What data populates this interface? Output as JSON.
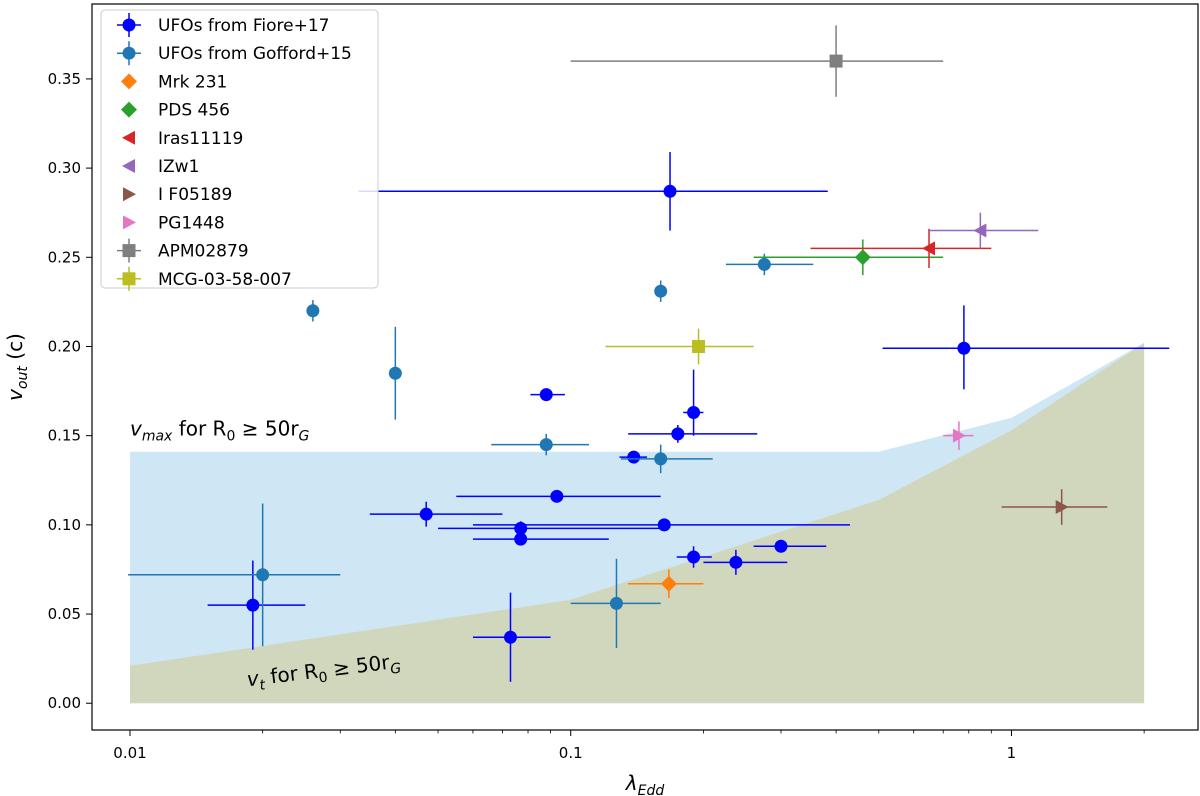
{
  "chart_data": {
    "type": "scatter",
    "x_scale": "log",
    "xlim": [
      0.0082,
      2.65
    ],
    "ylim": [
      -0.015,
      0.392
    ],
    "xlabel": {
      "main": "λ",
      "sub": "Edd"
    },
    "ylabel": {
      "main": "v",
      "sub": "out",
      "unit": " (c)"
    },
    "x_ticks": [
      {
        "value": 0.01,
        "label": "0.01"
      },
      {
        "value": 0.1,
        "label": "0.1"
      },
      {
        "value": 1,
        "label": "1"
      }
    ],
    "x_minor_ticks": [
      0.02,
      0.03,
      0.04,
      0.05,
      0.06,
      0.07,
      0.08,
      0.09,
      0.2,
      0.3,
      0.4,
      0.5,
      0.6,
      0.7,
      0.8,
      0.9,
      2
    ],
    "y_ticks": [
      {
        "value": 0.0,
        "label": "0.00"
      },
      {
        "value": 0.05,
        "label": "0.05"
      },
      {
        "value": 0.1,
        "label": "0.10"
      },
      {
        "value": 0.15,
        "label": "0.15"
      },
      {
        "value": 0.2,
        "label": "0.20"
      },
      {
        "value": 0.25,
        "label": "0.25"
      },
      {
        "value": 0.3,
        "label": "0.30"
      },
      {
        "value": 0.35,
        "label": "0.35"
      }
    ],
    "regions": [
      {
        "name": "vmax-region",
        "color": "#cfe7f5",
        "upper": [
          [
            0.01,
            0.141
          ],
          [
            0.5,
            0.141
          ],
          [
            1.0,
            0.16
          ],
          [
            2.0,
            0.202
          ]
        ],
        "lower": [
          [
            0.01,
            0.0
          ],
          [
            2.0,
            0.0
          ]
        ]
      },
      {
        "name": "vt-region",
        "color": "#d0d7bc",
        "upper": [
          [
            0.01,
            0.021
          ],
          [
            0.1,
            0.058
          ],
          [
            0.5,
            0.114
          ],
          [
            1.0,
            0.153
          ],
          [
            2.0,
            0.202
          ]
        ],
        "lower": [
          [
            0.01,
            0.0
          ],
          [
            2.0,
            0.0
          ]
        ]
      }
    ],
    "annotations": [
      {
        "name": "vmax-label",
        "main": "v",
        "sub": "max",
        "text": " for R",
        "sub2": "0",
        "text2": " ≥ 50r",
        "sub3": "G",
        "x": 0.01,
        "y": 0.15,
        "rotation": 0
      },
      {
        "name": "vt-label",
        "main": "v",
        "sub": "t",
        "text": " for R",
        "sub2": "0",
        "text2": " ≥ 50r",
        "sub3": "G",
        "x": 0.0185,
        "y": 0.0095,
        "rotation": -7
      }
    ],
    "series": [
      {
        "name": "UFOs from Fiore+17",
        "color": "#0000ff",
        "marker": "circle",
        "points": [
          {
            "x": 0.168,
            "y": 0.287,
            "xlo": 0.135,
            "xhi": 0.215,
            "ylo": 0.022,
            "yhi": 0.022
          },
          {
            "x": 0.78,
            "y": 0.199,
            "xlo": 0.27,
            "xhi": 1.5,
            "ylo": 0.023,
            "yhi": 0.024
          },
          {
            "x": 0.088,
            "y": 0.173,
            "xlo": 0.007,
            "xhi": 0.009,
            "ylo": 0.003,
            "yhi": 0.003
          },
          {
            "x": 0.19,
            "y": 0.163,
            "xlo": 0.01,
            "xhi": 0.01,
            "ylo": 0.013,
            "yhi": 0.024
          },
          {
            "x": 0.175,
            "y": 0.151,
            "xlo": 0.04,
            "xhi": 0.09,
            "ylo": 0.005,
            "yhi": 0.005
          },
          {
            "x": 0.139,
            "y": 0.138,
            "xlo": 0.01,
            "xhi": 0.01,
            "ylo": 0.003,
            "yhi": 0.003
          },
          {
            "x": 0.093,
            "y": 0.116,
            "xlo": 0.038,
            "xhi": 0.067,
            "ylo": 0.003,
            "yhi": 0.003
          },
          {
            "x": 0.047,
            "y": 0.106,
            "xlo": 0.012,
            "xhi": 0.023,
            "ylo": 0.007,
            "yhi": 0.007
          },
          {
            "x": 0.163,
            "y": 0.1,
            "xlo": 0.103,
            "xhi": 0.267,
            "ylo": 0.003,
            "yhi": 0.003
          },
          {
            "x": 0.077,
            "y": 0.098,
            "xlo": 0.027,
            "xhi": 0.083,
            "ylo": 0.004,
            "yhi": 0.004
          },
          {
            "x": 0.077,
            "y": 0.092,
            "xlo": 0.017,
            "xhi": 0.045,
            "ylo": 0.003,
            "yhi": 0.003
          },
          {
            "x": 0.19,
            "y": 0.082,
            "xlo": 0.016,
            "xhi": 0.019,
            "ylo": 0.006,
            "yhi": 0.006
          },
          {
            "x": 0.3,
            "y": 0.088,
            "xlo": 0.04,
            "xhi": 0.08,
            "ylo": 0.003,
            "yhi": 0.003
          },
          {
            "x": 0.237,
            "y": 0.079,
            "xlo": 0.037,
            "xhi": 0.073,
            "ylo": 0.007,
            "yhi": 0.007
          },
          {
            "x": 0.019,
            "y": 0.055,
            "xlo": 0.004,
            "xhi": 0.006,
            "ylo": 0.025,
            "yhi": 0.025
          },
          {
            "x": 0.073,
            "y": 0.037,
            "xlo": 0.013,
            "xhi": 0.017,
            "ylo": 0.025,
            "yhi": 0.025
          }
        ]
      },
      {
        "name": "UFOs from Gofford+15",
        "color": "#1f77b4",
        "marker": "circle",
        "points": [
          {
            "x": 0.026,
            "y": 0.22,
            "xlo": 0.0005,
            "xhi": 0.0005,
            "ylo": 0.006,
            "yhi": 0.006
          },
          {
            "x": 0.04,
            "y": 0.185,
            "xlo": 0.0005,
            "xhi": 0.0005,
            "ylo": 0.026,
            "yhi": 0.026
          },
          {
            "x": 0.275,
            "y": 0.246,
            "xlo": 0.05,
            "xhi": 0.08,
            "ylo": 0.006,
            "yhi": 0.006
          },
          {
            "x": 0.16,
            "y": 0.231,
            "xlo": 0.002,
            "xhi": 0.002,
            "ylo": 0.006,
            "yhi": 0.006
          },
          {
            "x": 0.088,
            "y": 0.145,
            "xlo": 0.022,
            "xhi": 0.022,
            "ylo": 0.006,
            "yhi": 0.006
          },
          {
            "x": 0.16,
            "y": 0.137,
            "xlo": 0.03,
            "xhi": 0.05,
            "ylo": 0.008,
            "yhi": 0.008
          },
          {
            "x": 0.02,
            "y": 0.072,
            "xlo": 0.0101,
            "xhi": 0.01,
            "ylo": 0.04,
            "yhi": 0.04
          },
          {
            "x": 0.127,
            "y": 0.056,
            "xlo": 0.027,
            "xhi": 0.033,
            "ylo": 0.025,
            "yhi": 0.025
          }
        ]
      },
      {
        "name": "Mrk 231",
        "color": "#ff7f0e",
        "marker": "diamond",
        "points": [
          {
            "x": 0.167,
            "y": 0.067,
            "xlo": 0.032,
            "xhi": 0.033,
            "ylo": 0.008,
            "yhi": 0.008
          }
        ]
      },
      {
        "name": "PDS 456",
        "color": "#2ca02c",
        "marker": "diamond",
        "points": [
          {
            "x": 0.46,
            "y": 0.25,
            "xlo": 0.2,
            "xhi": 0.24,
            "ylo": 0.01,
            "yhi": 0.01
          }
        ]
      },
      {
        "name": "Iras11119",
        "color": "#d62728",
        "marker": "triangle-left",
        "points": [
          {
            "x": 0.65,
            "y": 0.255,
            "xlo": 0.3,
            "xhi": 0.25,
            "ylo": 0.011,
            "yhi": 0.011
          }
        ]
      },
      {
        "name": "IZw1",
        "color": "#9467bd",
        "marker": "triangle-left",
        "points": [
          {
            "x": 0.85,
            "y": 0.265,
            "xlo": 0.2,
            "xhi": 0.3,
            "ylo": 0.01,
            "yhi": 0.01
          }
        ]
      },
      {
        "name": "I F05189",
        "color": "#8c564b",
        "marker": "triangle-right",
        "points": [
          {
            "x": 1.3,
            "y": 0.11,
            "xlo": 0.35,
            "xhi": 0.35,
            "ylo": 0.01,
            "yhi": 0.01
          }
        ]
      },
      {
        "name": "PG1448",
        "color": "#e377c2",
        "marker": "triangle-right",
        "points": [
          {
            "x": 0.76,
            "y": 0.15,
            "xlo": 0.06,
            "xhi": 0.06,
            "ylo": 0.008,
            "yhi": 0.008
          }
        ]
      },
      {
        "name": "APM02879",
        "color": "#7f7f7f",
        "marker": "square",
        "points": [
          {
            "x": 0.4,
            "y": 0.36,
            "xlo": 0.3,
            "xhi": 0.3,
            "ylo": 0.02,
            "yhi": 0.02
          }
        ]
      },
      {
        "name": "MCG-03-58-007",
        "color": "#bcbd22",
        "marker": "square",
        "points": [
          {
            "x": 0.195,
            "y": 0.2,
            "xlo": 0.075,
            "xhi": 0.065,
            "ylo": 0.01,
            "yhi": 0.01
          }
        ]
      }
    ],
    "legend": {
      "position": "top-left"
    }
  }
}
